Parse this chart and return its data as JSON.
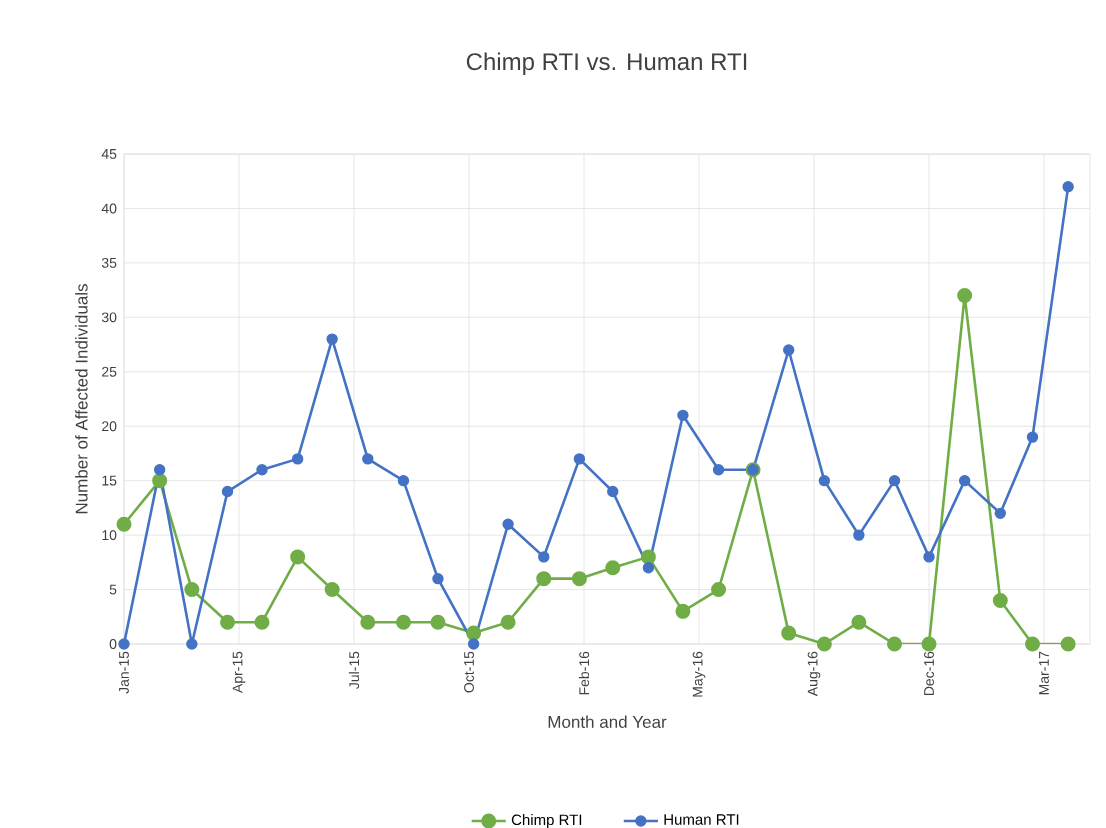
{
  "chart_data": {
    "type": "line",
    "title": "Chimp RTI vs. Human RTI",
    "xlabel": "Month and Year",
    "ylabel": "Number of Affected Individuals",
    "x": [
      "2015-01",
      "2015-02",
      "2015-03",
      "2015-04",
      "2015-05",
      "2015-06",
      "2015-07",
      "2015-08",
      "2015-09",
      "2015-10",
      "2015-11",
      "2015-12",
      "2016-01",
      "2016-02",
      "2016-03",
      "2016-04",
      "2016-05",
      "2016-06",
      "2016-07",
      "2016-08",
      "2016-09",
      "2016-10",
      "2016-11",
      "2016-12",
      "2017-01",
      "2017-02",
      "2017-03",
      "2017-04"
    ],
    "series": [
      {
        "name": "Chimp RTI",
        "color": "#70ad47",
        "values": [
          11,
          15,
          5,
          2,
          2,
          8,
          5,
          2,
          2,
          2,
          1,
          2,
          6,
          6,
          7,
          8,
          3,
          5,
          16,
          1,
          0,
          2,
          0,
          0,
          32,
          4,
          0,
          0
        ]
      },
      {
        "name": "Human RTI",
        "color": "#4472c4",
        "values": [
          0,
          16,
          0,
          14,
          16,
          17,
          28,
          17,
          15,
          6,
          0,
          11,
          8,
          17,
          14,
          7,
          21,
          16,
          16,
          27,
          15,
          10,
          15,
          8,
          15,
          12,
          19,
          42
        ]
      }
    ],
    "xlim": [
      "2015-01-01",
      "2017-04-20"
    ],
    "xticks": [
      {
        "value": "2015-01-01",
        "label": "Jan-15"
      },
      {
        "value": "2015-04-11",
        "label": "Apr-15"
      },
      {
        "value": "2015-07-20",
        "label": "Jul-15"
      },
      {
        "value": "2015-10-28",
        "label": "Oct-15"
      },
      {
        "value": "2016-02-05",
        "label": "Feb-16"
      },
      {
        "value": "2016-05-15",
        "label": "May-16"
      },
      {
        "value": "2016-08-23",
        "label": "Aug-16"
      },
      {
        "value": "2016-12-01",
        "label": "Dec-16"
      },
      {
        "value": "2017-03-11",
        "label": "Mar-17"
      }
    ],
    "ylim": [
      0,
      45
    ],
    "yticks": [
      0,
      5,
      10,
      15,
      20,
      25,
      30,
      35,
      40,
      45
    ],
    "grid": true,
    "legend": "bottom",
    "marker": "circle",
    "line_style": "solid"
  }
}
